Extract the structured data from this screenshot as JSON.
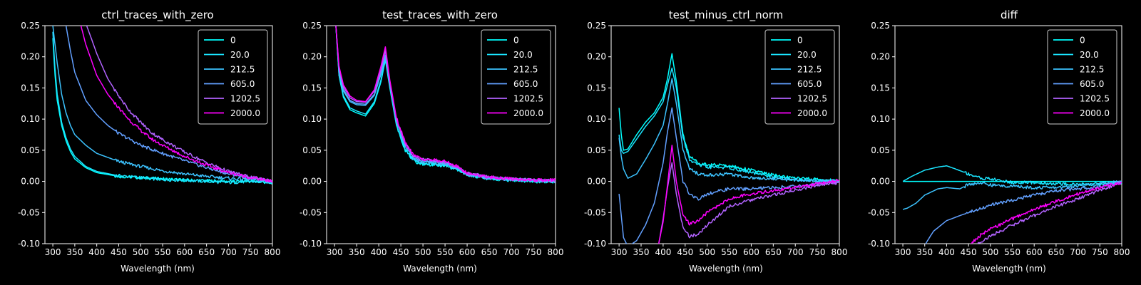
{
  "figure": {
    "background": "#000000",
    "foreground": "#ffffff",
    "series_colors": [
      "#00ffff",
      "#1ae5ff",
      "#3cc3ff",
      "#62a0ff",
      "#b263ff",
      "#ff00ff"
    ],
    "legend_location": "top-right"
  },
  "chart_data": [
    {
      "type": "line",
      "title": "ctrl_traces_with_zero",
      "xlabel": "Wavelength (nm)",
      "ylabel": "",
      "xlim": [
        282,
        800
      ],
      "ylim": [
        -0.1,
        0.25
      ],
      "xticks": [
        300,
        350,
        400,
        450,
        500,
        550,
        600,
        650,
        700,
        750,
        800
      ],
      "yticks": [
        -0.1,
        -0.05,
        0.0,
        0.05,
        0.1,
        0.15,
        0.2,
        0.25
      ],
      "legend": [
        "0",
        "20.0",
        "212.5",
        "605.0",
        "1202.5",
        "2000.0"
      ],
      "series": [
        {
          "name": "0",
          "x": [
            300,
            305,
            310,
            320,
            330,
            340,
            350,
            375,
            400,
            450,
            500,
            550,
            600,
            650,
            700,
            750,
            800
          ],
          "values": [
            0.23,
            0.17,
            0.13,
            0.09,
            0.065,
            0.048,
            0.036,
            0.022,
            0.014,
            0.008,
            0.006,
            0.004,
            0.002,
            0.001,
            0.0,
            0.0,
            -0.002
          ]
        },
        {
          "name": "20.0",
          "x": [
            300,
            305,
            310,
            320,
            330,
            340,
            350,
            375,
            400,
            450,
            500,
            550,
            600,
            650,
            700,
            750,
            800
          ],
          "values": [
            0.24,
            0.18,
            0.14,
            0.095,
            0.07,
            0.052,
            0.04,
            0.024,
            0.016,
            0.009,
            0.006,
            0.003,
            0.002,
            0.0,
            -0.002,
            0.0,
            -0.002
          ]
        },
        {
          "name": "212.5",
          "x": [
            300,
            310,
            320,
            330,
            340,
            350,
            375,
            400,
            450,
            500,
            550,
            600,
            650,
            700,
            750,
            800
          ],
          "values": [
            0.25,
            0.19,
            0.14,
            0.11,
            0.09,
            0.075,
            0.058,
            0.045,
            0.032,
            0.024,
            0.017,
            0.012,
            0.008,
            0.005,
            0.003,
            0.0
          ]
        },
        {
          "name": "605.0",
          "x": [
            330,
            340,
            350,
            375,
            400,
            425,
            450,
            500,
            550,
            600,
            650,
            700,
            750,
            800
          ],
          "values": [
            0.25,
            0.21,
            0.175,
            0.13,
            0.107,
            0.09,
            0.077,
            0.058,
            0.045,
            0.033,
            0.022,
            0.012,
            0.006,
            0.0
          ]
        },
        {
          "name": "1202.5",
          "x": [
            377,
            390,
            400,
            425,
            450,
            475,
            500,
            525,
            550,
            600,
            650,
            700,
            750,
            800
          ],
          "values": [
            0.25,
            0.225,
            0.205,
            0.165,
            0.137,
            0.113,
            0.095,
            0.078,
            0.067,
            0.047,
            0.03,
            0.016,
            0.007,
            0.0
          ]
        },
        {
          "name": "2000.0",
          "x": [
            364,
            375,
            400,
            425,
            450,
            475,
            500,
            525,
            550,
            600,
            650,
            700,
            750,
            800
          ],
          "values": [
            0.25,
            0.22,
            0.17,
            0.14,
            0.118,
            0.098,
            0.082,
            0.068,
            0.058,
            0.04,
            0.026,
            0.014,
            0.006,
            0.0
          ]
        }
      ]
    },
    {
      "type": "line",
      "title": "test_traces_with_zero",
      "xlabel": "Wavelength (nm)",
      "ylabel": "",
      "xlim": [
        282,
        800
      ],
      "ylim": [
        -0.1,
        0.25
      ],
      "xticks": [
        300,
        350,
        400,
        450,
        500,
        550,
        600,
        650,
        700,
        750,
        800
      ],
      "yticks": [
        -0.1,
        -0.05,
        0.0,
        0.05,
        0.1,
        0.15,
        0.2,
        0.25
      ],
      "legend": [
        "0",
        "20.0",
        "212.5",
        "605.0",
        "1202.5",
        "2000.0"
      ],
      "series": [
        {
          "name": "0",
          "x": [
            303,
            310,
            320,
            335,
            350,
            370,
            390,
            405,
            415,
            425,
            440,
            460,
            480,
            500,
            550,
            575,
            600,
            650,
            700,
            750,
            800
          ],
          "values": [
            0.25,
            0.17,
            0.135,
            0.115,
            0.11,
            0.105,
            0.125,
            0.16,
            0.195,
            0.15,
            0.09,
            0.05,
            0.032,
            0.028,
            0.025,
            0.02,
            0.01,
            0.004,
            0.002,
            0.0,
            -0.001
          ]
        },
        {
          "name": "20.0",
          "x": [
            303,
            310,
            320,
            335,
            350,
            370,
            390,
            405,
            415,
            425,
            440,
            460,
            480,
            500,
            550,
            575,
            600,
            650,
            700,
            750,
            800
          ],
          "values": [
            0.25,
            0.17,
            0.138,
            0.118,
            0.113,
            0.108,
            0.128,
            0.163,
            0.198,
            0.152,
            0.092,
            0.052,
            0.033,
            0.029,
            0.026,
            0.021,
            0.011,
            0.005,
            0.003,
            0.001,
            0.0
          ]
        },
        {
          "name": "212.5",
          "x": [
            303,
            310,
            320,
            335,
            350,
            370,
            390,
            405,
            415,
            425,
            440,
            460,
            480,
            500,
            550,
            575,
            600,
            650,
            700,
            750,
            800
          ],
          "values": [
            0.25,
            0.175,
            0.145,
            0.128,
            0.123,
            0.122,
            0.138,
            0.172,
            0.2,
            0.155,
            0.095,
            0.056,
            0.036,
            0.031,
            0.028,
            0.022,
            0.011,
            0.005,
            0.003,
            0.001,
            0.0
          ]
        },
        {
          "name": "605.0",
          "x": [
            303,
            310,
            320,
            335,
            350,
            370,
            390,
            405,
            415,
            425,
            440,
            460,
            480,
            500,
            550,
            575,
            600,
            650,
            700,
            750,
            800
          ],
          "values": [
            0.25,
            0.178,
            0.148,
            0.13,
            0.125,
            0.124,
            0.14,
            0.175,
            0.203,
            0.157,
            0.097,
            0.058,
            0.038,
            0.033,
            0.029,
            0.023,
            0.012,
            0.006,
            0.004,
            0.002,
            0.001
          ]
        },
        {
          "name": "1202.5",
          "x": [
            303,
            310,
            320,
            335,
            350,
            370,
            390,
            405,
            415,
            425,
            440,
            460,
            480,
            500,
            550,
            575,
            600,
            650,
            700,
            750,
            800
          ],
          "values": [
            0.25,
            0.182,
            0.152,
            0.134,
            0.128,
            0.127,
            0.145,
            0.18,
            0.21,
            0.16,
            0.1,
            0.06,
            0.04,
            0.035,
            0.031,
            0.024,
            0.013,
            0.007,
            0.004,
            0.002,
            0.001
          ]
        },
        {
          "name": "2000.0",
          "x": [
            303,
            310,
            320,
            335,
            350,
            370,
            390,
            405,
            415,
            425,
            440,
            460,
            480,
            500,
            550,
            575,
            600,
            650,
            700,
            750,
            800
          ],
          "values": [
            0.25,
            0.185,
            0.155,
            0.137,
            0.13,
            0.128,
            0.147,
            0.185,
            0.216,
            0.163,
            0.102,
            0.062,
            0.041,
            0.036,
            0.032,
            0.025,
            0.013,
            0.007,
            0.004,
            0.002,
            0.002
          ]
        }
      ]
    },
    {
      "type": "line",
      "title": "test_minus_ctrl_norm",
      "xlabel": "Wavelength (nm)",
      "ylabel": "",
      "xlim": [
        282,
        800
      ],
      "ylim": [
        -0.1,
        0.25
      ],
      "xticks": [
        300,
        350,
        400,
        450,
        500,
        550,
        600,
        650,
        700,
        750,
        800
      ],
      "yticks": [
        -0.1,
        -0.05,
        0.0,
        0.05,
        0.1,
        0.15,
        0.2,
        0.25
      ],
      "legend": [
        "0",
        "20.0",
        "212.5",
        "605.0",
        "1202.5",
        "2000.0"
      ],
      "series": [
        {
          "name": "0",
          "x": [
            300,
            305,
            310,
            320,
            340,
            360,
            380,
            400,
            410,
            420,
            430,
            445,
            460,
            480,
            500,
            550,
            600,
            650,
            700,
            750,
            800
          ],
          "values": [
            0.118,
            0.075,
            0.05,
            0.052,
            0.075,
            0.095,
            0.11,
            0.135,
            0.165,
            0.205,
            0.16,
            0.075,
            0.04,
            0.03,
            0.027,
            0.025,
            0.018,
            0.01,
            0.005,
            0.003,
            0.001
          ]
        },
        {
          "name": "20.0",
          "x": [
            300,
            305,
            310,
            320,
            340,
            360,
            380,
            400,
            410,
            420,
            430,
            445,
            460,
            480,
            500,
            550,
            600,
            650,
            700,
            750,
            800
          ],
          "values": [
            0.075,
            0.05,
            0.045,
            0.048,
            0.068,
            0.088,
            0.105,
            0.128,
            0.155,
            0.182,
            0.15,
            0.07,
            0.035,
            0.026,
            0.023,
            0.022,
            0.014,
            0.007,
            0.003,
            0.002,
            0.0
          ]
        },
        {
          "name": "212.5",
          "x": [
            300,
            305,
            310,
            320,
            340,
            360,
            380,
            400,
            410,
            420,
            430,
            445,
            460,
            480,
            500,
            550,
            600,
            650,
            700,
            750,
            800
          ],
          "values": [
            0.07,
            0.04,
            0.02,
            0.005,
            0.012,
            0.035,
            0.06,
            0.09,
            0.125,
            0.165,
            0.125,
            0.05,
            0.02,
            0.012,
            0.01,
            0.012,
            0.006,
            0.004,
            0.002,
            0.001,
            0.0
          ]
        },
        {
          "name": "605.0",
          "x": [
            300,
            310,
            320,
            340,
            360,
            380,
            400,
            410,
            420,
            430,
            445,
            460,
            480,
            500,
            550,
            600,
            650,
            700,
            750,
            800
          ],
          "values": [
            -0.02,
            -0.09,
            -0.105,
            -0.095,
            -0.07,
            -0.035,
            0.03,
            0.08,
            0.118,
            0.07,
            0.0,
            -0.02,
            -0.028,
            -0.02,
            -0.012,
            -0.012,
            -0.01,
            -0.008,
            -0.004,
            0.0
          ]
        },
        {
          "name": "1202.5",
          "x": [
            380,
            390,
            400,
            410,
            420,
            430,
            445,
            460,
            480,
            500,
            550,
            600,
            650,
            700,
            750,
            800
          ],
          "values": [
            -0.12,
            -0.1,
            -0.06,
            -0.01,
            0.03,
            -0.02,
            -0.075,
            -0.088,
            -0.085,
            -0.07,
            -0.04,
            -0.03,
            -0.022,
            -0.014,
            -0.006,
            -0.002
          ]
        },
        {
          "name": "2000.0",
          "x": [
            390,
            400,
            410,
            420,
            430,
            445,
            460,
            480,
            500,
            550,
            600,
            650,
            700,
            750,
            800
          ],
          "values": [
            -0.1,
            -0.065,
            -0.005,
            0.058,
            0.0,
            -0.055,
            -0.068,
            -0.063,
            -0.05,
            -0.028,
            -0.02,
            -0.015,
            -0.01,
            -0.004,
            0.002
          ]
        }
      ]
    },
    {
      "type": "line",
      "title": "diff",
      "xlabel": "Wavelength (nm)",
      "ylabel": "",
      "xlim": [
        282,
        800
      ],
      "ylim": [
        -0.1,
        0.25
      ],
      "xticks": [
        300,
        350,
        400,
        450,
        500,
        550,
        600,
        650,
        700,
        750,
        800
      ],
      "yticks": [
        -0.1,
        -0.05,
        0.0,
        0.05,
        0.1,
        0.15,
        0.2,
        0.25
      ],
      "legend": [
        "0",
        "20.0",
        "212.5",
        "605.0",
        "1202.5",
        "2000.0"
      ],
      "series": [
        {
          "name": "0",
          "x": [
            300,
            800
          ],
          "values": [
            0.0,
            0.0
          ]
        },
        {
          "name": "20.0",
          "x": [
            300,
            320,
            350,
            380,
            400,
            420,
            450,
            480,
            500,
            550,
            600,
            650,
            700,
            750,
            800
          ],
          "values": [
            0.0,
            0.008,
            0.018,
            0.023,
            0.025,
            0.02,
            0.012,
            0.005,
            0.004,
            -0.002,
            -0.002,
            -0.004,
            -0.005,
            -0.004,
            -0.002
          ]
        },
        {
          "name": "212.5",
          "x": [
            300,
            310,
            330,
            350,
            380,
            400,
            430,
            450,
            480,
            500,
            550,
            600,
            650,
            700,
            750,
            800
          ],
          "values": [
            -0.045,
            -0.043,
            -0.035,
            -0.022,
            -0.012,
            -0.01,
            -0.012,
            -0.005,
            -0.002,
            -0.006,
            -0.008,
            -0.01,
            -0.01,
            -0.007,
            -0.004,
            0.0
          ]
        },
        {
          "name": "605.0",
          "x": [
            352,
            370,
            400,
            430,
            450,
            480,
            500,
            550,
            600,
            650,
            700,
            750,
            800
          ],
          "values": [
            -0.1,
            -0.08,
            -0.063,
            -0.055,
            -0.05,
            -0.043,
            -0.038,
            -0.03,
            -0.022,
            -0.015,
            -0.012,
            -0.008,
            -0.001
          ]
        },
        {
          "name": "1202.5",
          "x": [
            470,
            500,
            550,
            600,
            650,
            700,
            750,
            800
          ],
          "values": [
            -0.1,
            -0.088,
            -0.07,
            -0.055,
            -0.04,
            -0.028,
            -0.014,
            -0.002
          ]
        },
        {
          "name": "2000.0",
          "x": [
            455,
            480,
            500,
            550,
            600,
            650,
            700,
            750,
            800
          ],
          "values": [
            -0.1,
            -0.085,
            -0.077,
            -0.06,
            -0.045,
            -0.032,
            -0.02,
            -0.01,
            -0.002
          ]
        }
      ]
    }
  ]
}
